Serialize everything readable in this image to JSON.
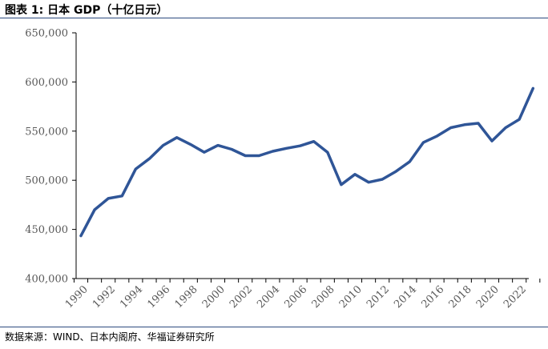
{
  "figure": {
    "label": "图表 1:",
    "title": "日本 GDP（十亿日元）"
  },
  "source": "数据来源：WIND、日本内阁府、华福证券研究所",
  "colors": {
    "line": "#2f5597",
    "axis": "#000000",
    "tick_text": "#595959",
    "rule": "#2c4a7e"
  },
  "chart_data": {
    "type": "line",
    "title": "日本 GDP（十亿日元）",
    "xlabel": "",
    "ylabel": "",
    "ylim": [
      400000,
      650000
    ],
    "yticks": [
      400000,
      450000,
      500000,
      550000,
      600000,
      650000
    ],
    "ytick_labels": [
      "400,000",
      "450,000",
      "500,000",
      "550,000",
      "600,000",
      "650,000"
    ],
    "xtick_labels": [
      "1990",
      "1992",
      "1994",
      "1996",
      "1998",
      "2000",
      "2002",
      "2004",
      "2006",
      "2008",
      "2010",
      "2012",
      "2014",
      "2016",
      "2018",
      "2020",
      "2022"
    ],
    "grid": false,
    "legend": "none",
    "series": [
      {
        "x": [
          1990,
          1991,
          1992,
          1993,
          1994,
          1995,
          1996,
          1997,
          1998,
          1999,
          2000,
          2001,
          2002,
          2003,
          2004,
          2005,
          2006,
          2007,
          2008,
          2009,
          2010,
          2011,
          2012,
          2013,
          2014,
          2015,
          2016,
          2017,
          2018,
          2019,
          2020,
          2021,
          2022,
          2023
        ],
        "values": [
          443500,
          470000,
          481500,
          484000,
          511500,
          522000,
          535500,
          543500,
          536500,
          528500,
          535500,
          531500,
          525000,
          525000,
          529500,
          532500,
          535000,
          539500,
          528500,
          495500,
          506000,
          498000,
          501000,
          509000,
          519000,
          538500,
          545000,
          553500,
          556500,
          558000,
          540000,
          553500,
          562000,
          593500
        ]
      }
    ]
  }
}
